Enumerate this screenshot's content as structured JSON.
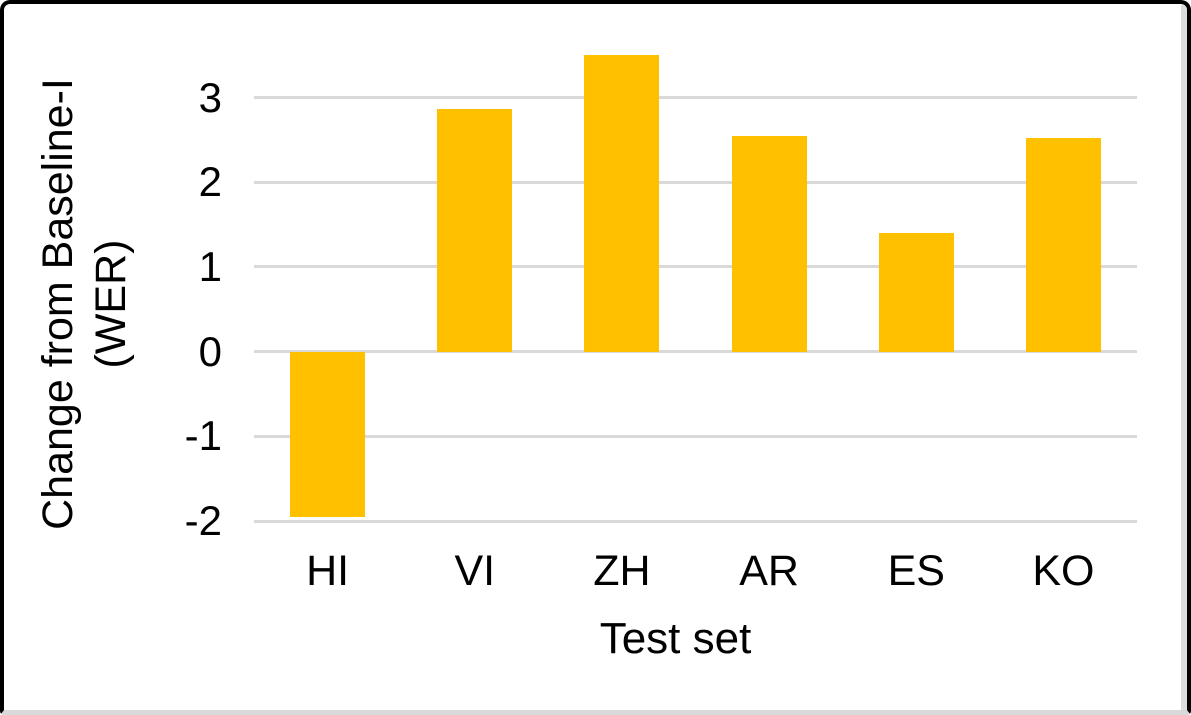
{
  "chart_data": {
    "type": "bar",
    "title": "",
    "xlabel": "Test set",
    "ylabel": "Change from Baseline-I (WER)",
    "ylabel_lines": [
      "Change from Baseline-I",
      "(WER)"
    ],
    "categories": [
      "HI",
      "VI",
      "ZH",
      "AR",
      "ES",
      "KO"
    ],
    "values": [
      -1.95,
      2.87,
      3.5,
      2.55,
      1.4,
      2.52
    ],
    "yticks": [
      3,
      2,
      1,
      0,
      -1,
      -2
    ],
    "ylim": [
      -2,
      3.75
    ],
    "grid": true,
    "legend": false,
    "bar_color": "#FFC000",
    "gridline_color": "#D9D9D9",
    "text_color": "#000000",
    "background_color": "#FFFFFF"
  }
}
